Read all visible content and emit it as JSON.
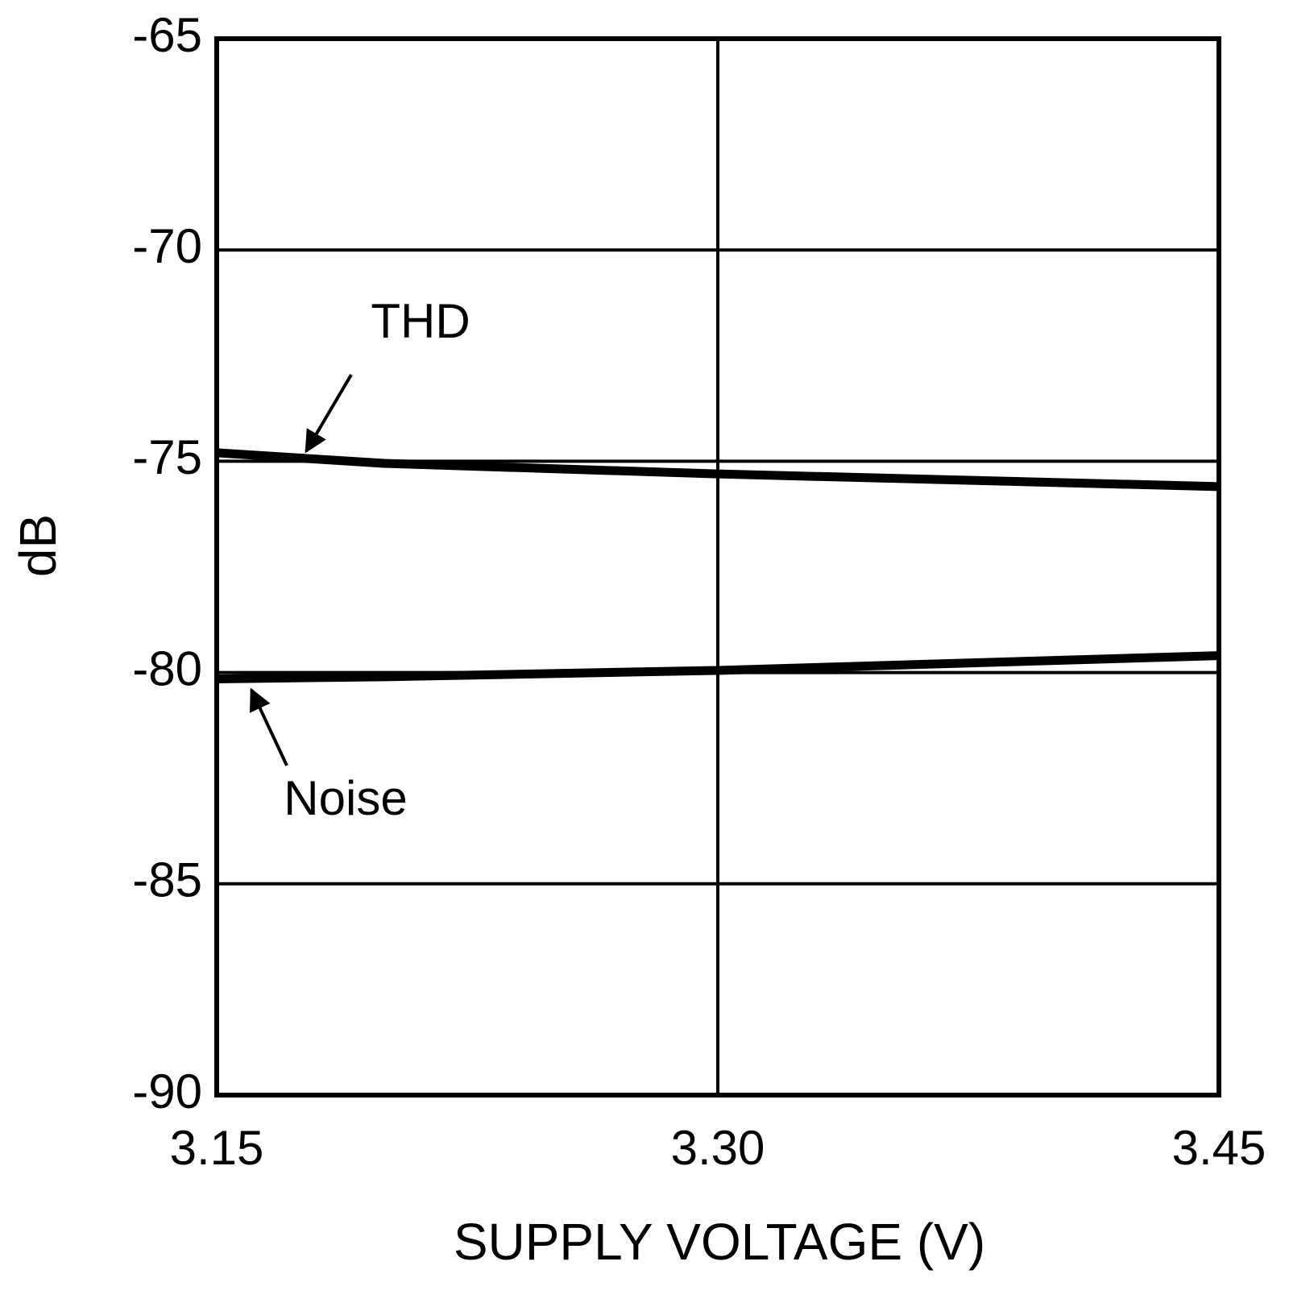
{
  "chart_data": {
    "type": "line",
    "x_label": "SUPPLY VOLTAGE (V)",
    "y_label": "dB",
    "x": [
      3.15,
      3.2,
      3.3,
      3.45
    ],
    "series": [
      {
        "name": "THD",
        "color": "#000000",
        "values": [
          -74.8,
          -75.05,
          -75.3,
          -75.6
        ]
      },
      {
        "name": "Noise",
        "color": "#000000",
        "values": [
          -80.15,
          -80.1,
          -79.95,
          -79.6
        ]
      }
    ],
    "xlim": [
      3.15,
      3.45
    ],
    "xticks": [
      3.15,
      {
        "value": 3.3,
        "label": "3.30"
      },
      3.45
    ],
    "ylim": [
      -90,
      -65
    ],
    "yticks": [
      -90,
      -85,
      -80,
      -75,
      -70,
      -65
    ],
    "grid": true
  }
}
